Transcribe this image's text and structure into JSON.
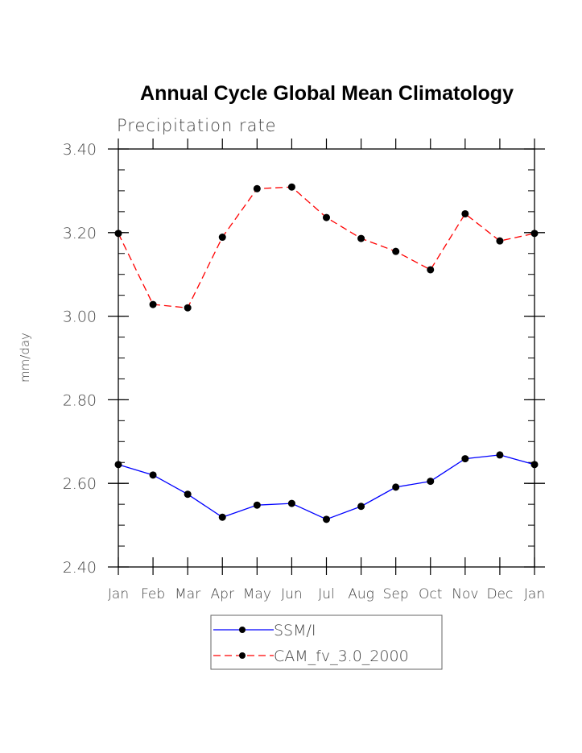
{
  "chart_data": {
    "type": "line",
    "title": "Annual Cycle Global Mean Climatology",
    "subtitle": "Precipitation rate",
    "xlabel": "",
    "ylabel": "mm/day",
    "categories": [
      "Jan",
      "Feb",
      "Mar",
      "Apr",
      "May",
      "Jun",
      "Jul",
      "Aug",
      "Sep",
      "Oct",
      "Nov",
      "Dec",
      "Jan"
    ],
    "ylim": [
      2.4,
      3.4
    ],
    "yticks": [
      "2.40",
      "2.60",
      "2.80",
      "3.00",
      "3.20",
      "3.40"
    ],
    "yminor_step": 0.05,
    "grid": false,
    "legend_position": "bottom-center",
    "series": [
      {
        "name": "SSM/I",
        "color": "#0000ff",
        "line_style": "solid",
        "marker": "filled-circle",
        "values": [
          2.645,
          2.62,
          2.574,
          2.519,
          2.548,
          2.552,
          2.514,
          2.545,
          2.591,
          2.605,
          2.659,
          2.668,
          2.645
        ]
      },
      {
        "name": "CAM_fv_3.0_2000",
        "color": "#ff0000",
        "line_style": "dashed",
        "marker": "filled-circle",
        "values": [
          3.198,
          3.028,
          3.02,
          3.189,
          3.305,
          3.309,
          3.236,
          3.186,
          3.155,
          3.111,
          3.245,
          3.18,
          3.198
        ]
      }
    ]
  }
}
